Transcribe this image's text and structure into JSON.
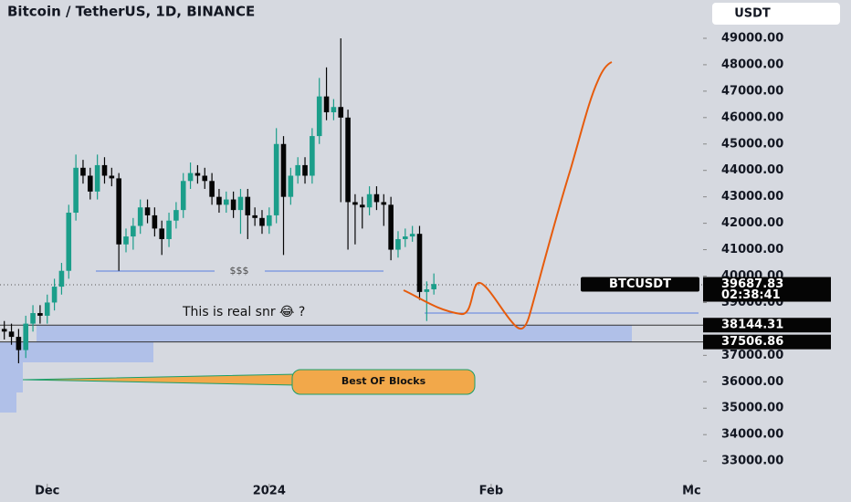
{
  "chart_data": {
    "type": "candlestick",
    "title": "Bitcoin / TetherUS, 1D, BINANCE",
    "currency": "USDT",
    "symbol": "BTCUSDT",
    "last_price": 39687.83,
    "countdown": "02:38:41",
    "price_levels": [
      38144.31,
      37506.86
    ],
    "annotations": {
      "liquidity": "$$$",
      "snr": "This is real snr 😂 ?",
      "blocks": "Best OF Blocks"
    },
    "up_color": "#1b9e8a",
    "down_color": "#050505",
    "categories": [
      null,
      null,
      null,
      null,
      null,
      null,
      null,
      null,
      null,
      null,
      null,
      null,
      null,
      null,
      null,
      null,
      null,
      null,
      null,
      null,
      null,
      null,
      null,
      null,
      null,
      null,
      null,
      null,
      null,
      null,
      null,
      null,
      null,
      null,
      null,
      null,
      null,
      null,
      null,
      null,
      null,
      null,
      null,
      null,
      null,
      null,
      null,
      null,
      null,
      null,
      null,
      null,
      null,
      null,
      null,
      null,
      null,
      null,
      null,
      null,
      null
    ],
    "open": [
      38000,
      37900,
      37700,
      37200,
      38200,
      38600,
      38500,
      39000,
      39600,
      40200,
      42400,
      44100,
      43800,
      43200,
      44200,
      43800,
      43700,
      41200,
      41500,
      41900,
      42600,
      42300,
      41800,
      41400,
      42100,
      42500,
      43600,
      43900,
      43800,
      43600,
      43000,
      42700,
      42900,
      42500,
      43000,
      42300,
      42200,
      41900,
      42300,
      45000,
      43000,
      43800,
      44200,
      43800,
      45300,
      46800,
      46200,
      46400,
      46000,
      42800,
      42700,
      42600,
      43100,
      42800,
      42700,
      41000,
      41400,
      41500,
      41600,
      39400,
      39500
    ],
    "high": [
      38300,
      38200,
      38000,
      38500,
      38900,
      38900,
      39300,
      39900,
      40500,
      42700,
      44600,
      44400,
      44100,
      44600,
      44500,
      44100,
      43900,
      41800,
      42200,
      42900,
      42900,
      42600,
      42100,
      42400,
      42800,
      43900,
      44300,
      44200,
      44100,
      43900,
      43300,
      43200,
      43200,
      43300,
      43300,
      42600,
      42500,
      42600,
      45600,
      45300,
      44100,
      44500,
      44500,
      45600,
      47500,
      47900,
      46700,
      49000,
      46300,
      43100,
      43000,
      43400,
      43400,
      43100,
      43000,
      41700,
      41800,
      41900,
      41900,
      39800,
      40100
    ],
    "low": [
      37600,
      37400,
      36700,
      36900,
      37900,
      38200,
      38200,
      38700,
      39300,
      39900,
      42100,
      43500,
      42900,
      42900,
      43500,
      43400,
      40200,
      40900,
      41000,
      41600,
      42000,
      41500,
      40800,
      41100,
      41800,
      42200,
      43300,
      43500,
      43300,
      42700,
      42400,
      42400,
      42200,
      41600,
      41400,
      41900,
      41600,
      41600,
      42000,
      40800,
      42700,
      43500,
      43500,
      43500,
      45000,
      45900,
      45900,
      42800,
      41000,
      41200,
      41800,
      42300,
      42500,
      41900,
      40600,
      40700,
      41100,
      41300,
      39100,
      38300,
      39300
    ],
    "close": [
      37900,
      37700,
      37200,
      38200,
      38600,
      38500,
      39000,
      39600,
      40200,
      42400,
      44100,
      43800,
      43200,
      44200,
      43800,
      43700,
      41200,
      41500,
      41900,
      42600,
      42300,
      41800,
      41400,
      42100,
      42500,
      43600,
      43900,
      43800,
      43600,
      43000,
      42700,
      42900,
      42500,
      43000,
      42300,
      42200,
      41900,
      42300,
      45000,
      43000,
      43800,
      44200,
      43800,
      45300,
      46800,
      46200,
      46400,
      46000,
      42800,
      42700,
      42600,
      43100,
      42800,
      42700,
      41000,
      41400,
      41500,
      41600,
      39400,
      39500,
      39700
    ],
    "xlim": [
      -0.6,
      97.6
    ],
    "xticks": [
      {
        "value": 6,
        "label": "Dec"
      },
      {
        "value": 37,
        "label": "2024"
      },
      {
        "value": 68,
        "label": "Feb"
      },
      {
        "value": 96,
        "label": "Mc"
      }
    ],
    "ylim": [
      31450,
      50450
    ],
    "yticks": [
      {
        "value": 49000,
        "label": "49000.00"
      },
      {
        "value": 48000,
        "label": "48000.00"
      },
      {
        "value": 47000,
        "label": "47000.00"
      },
      {
        "value": 46000,
        "label": "46000.00"
      },
      {
        "value": 45000,
        "label": "45000.00"
      },
      {
        "value": 44000,
        "label": "44000.00"
      },
      {
        "value": 43000,
        "label": "43000.00"
      },
      {
        "value": 42000,
        "label": "42000.00"
      },
      {
        "value": 41000,
        "label": "41000.00"
      },
      {
        "value": 40000,
        "label": "40000.00"
      },
      {
        "value": 39000,
        "label": "39000.00"
      },
      {
        "value": 37000,
        "label": "37000.00"
      },
      {
        "value": 36000,
        "label": "36000.00"
      },
      {
        "value": 35000,
        "label": "35000.00"
      },
      {
        "value": 34000,
        "label": "34000.00"
      },
      {
        "value": 33000,
        "label": "33000.00"
      }
    ]
  }
}
